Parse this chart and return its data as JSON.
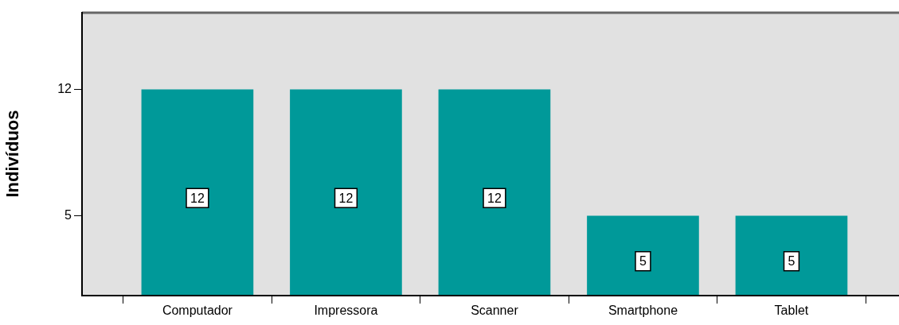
{
  "chart_data": {
    "type": "bar",
    "ylabel": "Indivíduos",
    "categories": [
      "Computador",
      "Impressora",
      "Scanner",
      "Smartphone",
      "Tablet"
    ],
    "values": [
      12,
      12,
      12,
      5,
      5
    ],
    "color": "#009999",
    "ylim": [
      0.6,
      16.3
    ],
    "yticks": [
      5,
      12
    ],
    "grid": false,
    "legend": false,
    "data_labels": true
  }
}
